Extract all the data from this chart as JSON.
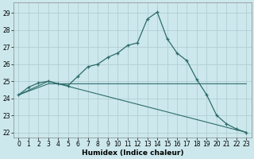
{
  "xlabel": "Humidex (Indice chaleur)",
  "ylabel": "",
  "xlim": [
    -0.5,
    23.5
  ],
  "ylim": [
    21.7,
    29.6
  ],
  "yticks": [
    22,
    23,
    24,
    25,
    26,
    27,
    28,
    29
  ],
  "xticks": [
    0,
    1,
    2,
    3,
    4,
    5,
    6,
    7,
    8,
    9,
    10,
    11,
    12,
    13,
    14,
    15,
    16,
    17,
    18,
    19,
    20,
    21,
    22,
    23
  ],
  "bg_color": "#cce8ec",
  "grid_color": "#b0ced4",
  "line_color": "#2d6b6b",
  "line1_x": [
    0,
    1,
    2,
    3,
    4,
    5,
    6,
    7,
    8,
    9,
    10,
    11,
    12,
    13,
    14,
    15,
    16,
    17,
    18,
    19,
    20,
    21,
    22,
    23
  ],
  "line1_y": [
    24.2,
    24.65,
    24.9,
    25.0,
    24.85,
    24.75,
    25.3,
    25.85,
    26.0,
    26.4,
    26.65,
    27.1,
    27.25,
    28.65,
    29.05,
    27.5,
    26.65,
    26.2,
    25.1,
    24.2,
    23.0,
    22.5,
    22.2,
    22.0
  ],
  "line2_x": [
    0,
    3,
    23
  ],
  "line2_y": [
    24.2,
    25.0,
    22.0
  ],
  "line3_x": [
    0,
    3,
    19,
    23
  ],
  "line3_y": [
    24.2,
    24.85,
    24.85,
    24.85
  ]
}
